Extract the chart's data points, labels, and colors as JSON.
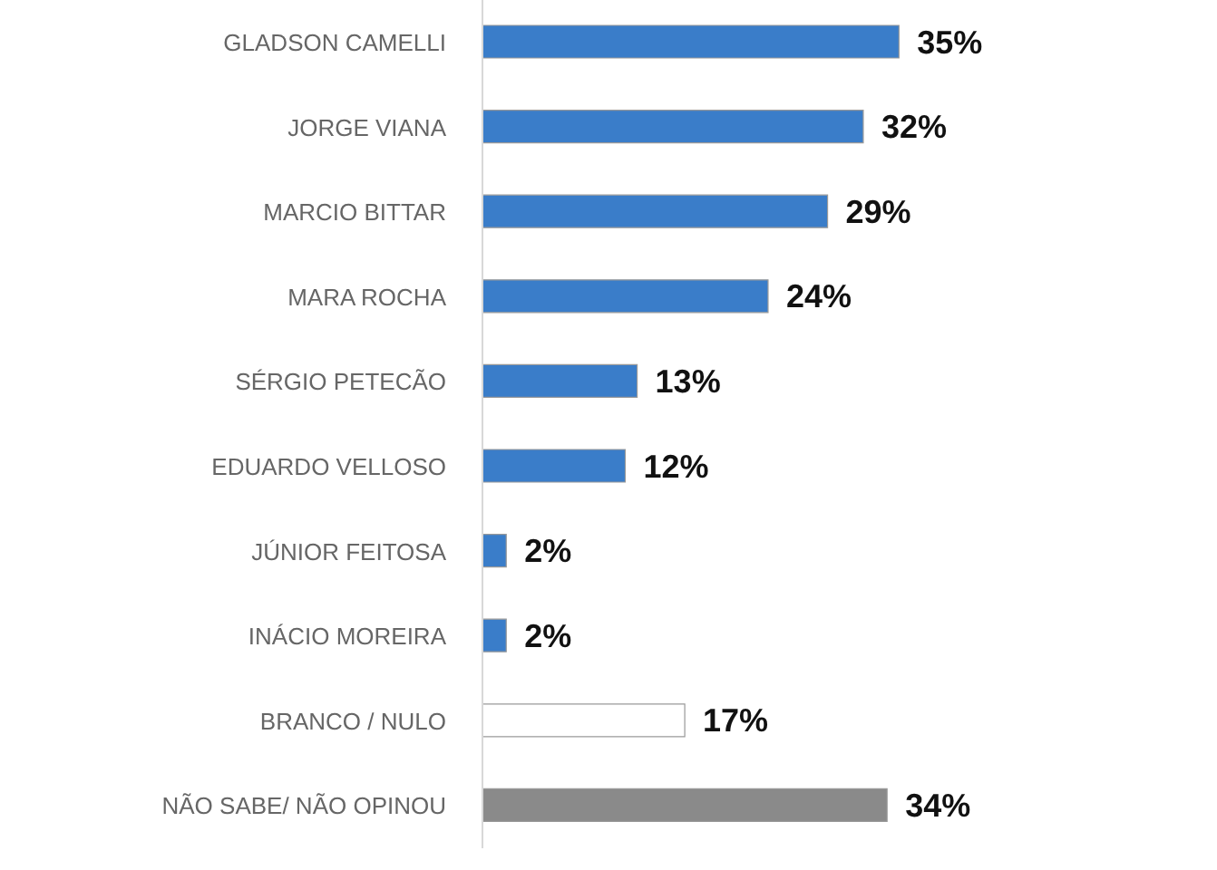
{
  "chart_data": {
    "type": "bar",
    "orientation": "horizontal",
    "categories": [
      "GLADSON CAMELLI",
      "JORGE VIANA",
      "MARCIO BITTAR",
      "MARA ROCHA",
      "SÉRGIO PETECÃO",
      "EDUARDO VELLOSO",
      "JÚNIOR FEITOSA",
      "INÁCIO MOREIRA",
      "BRANCO / NULO",
      "NÃO SABE/ NÃO OPINOU"
    ],
    "values": [
      35,
      32,
      29,
      24,
      13,
      12,
      2,
      2,
      17,
      34
    ],
    "colors": [
      "#3a7dc9",
      "#3a7dc9",
      "#3a7dc9",
      "#3a7dc9",
      "#3a7dc9",
      "#3a7dc9",
      "#3a7dc9",
      "#3a7dc9",
      "#ffffff",
      "#8a8a8a"
    ],
    "value_labels": [
      "35%",
      "32%",
      "29%",
      "24%",
      "13%",
      "12%",
      "2%",
      "2%",
      "17%",
      "34%"
    ],
    "tick_labels": "y"
  }
}
